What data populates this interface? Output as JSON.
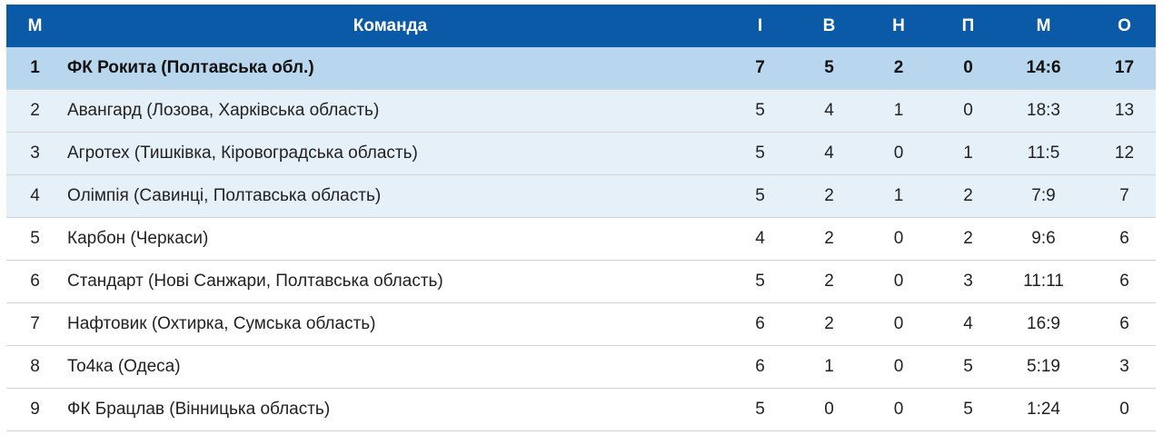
{
  "headers": [
    "М",
    "Команда",
    "І",
    "В",
    "Н",
    "П",
    "М",
    "О"
  ],
  "rows": [
    [
      "1",
      "ФК Рокита (Полтавська обл.)",
      "7",
      "5",
      "2",
      "0",
      "14:6",
      "17"
    ],
    [
      "2",
      "Авангард (Лозова, Харківська область)",
      "5",
      "4",
      "1",
      "0",
      "18:3",
      "13"
    ],
    [
      "3",
      "Агротех (Тишківка, Кіровоградська область)",
      "5",
      "4",
      "0",
      "1",
      "11:5",
      "12"
    ],
    [
      "4",
      "Олімпія (Савинці, Полтавська область)",
      "5",
      "2",
      "1",
      "2",
      "7:9",
      "7"
    ],
    [
      "5",
      "Карбон (Черкаси)",
      "4",
      "2",
      "0",
      "2",
      "9:6",
      "6"
    ],
    [
      "6",
      "Стандарт (Нові Санжари, Полтавська область)",
      "5",
      "2",
      "0",
      "3",
      "11:11",
      "6"
    ],
    [
      "7",
      "Нафтовик (Охтирка, Сумська область)",
      "6",
      "2",
      "0",
      "4",
      "16:9",
      "6"
    ],
    [
      "8",
      "То4ка (Одеса)",
      "6",
      "1",
      "0",
      "5",
      "5:19",
      "3"
    ],
    [
      "9",
      "ФК Брацлав (Вінницька область)",
      "5",
      "0",
      "0",
      "5",
      "1:24",
      "0"
    ]
  ],
  "colors": {
    "header": "#0b5aa8",
    "leader_row": "#b8d6ee",
    "highlight_row": "#e6f0f9"
  }
}
